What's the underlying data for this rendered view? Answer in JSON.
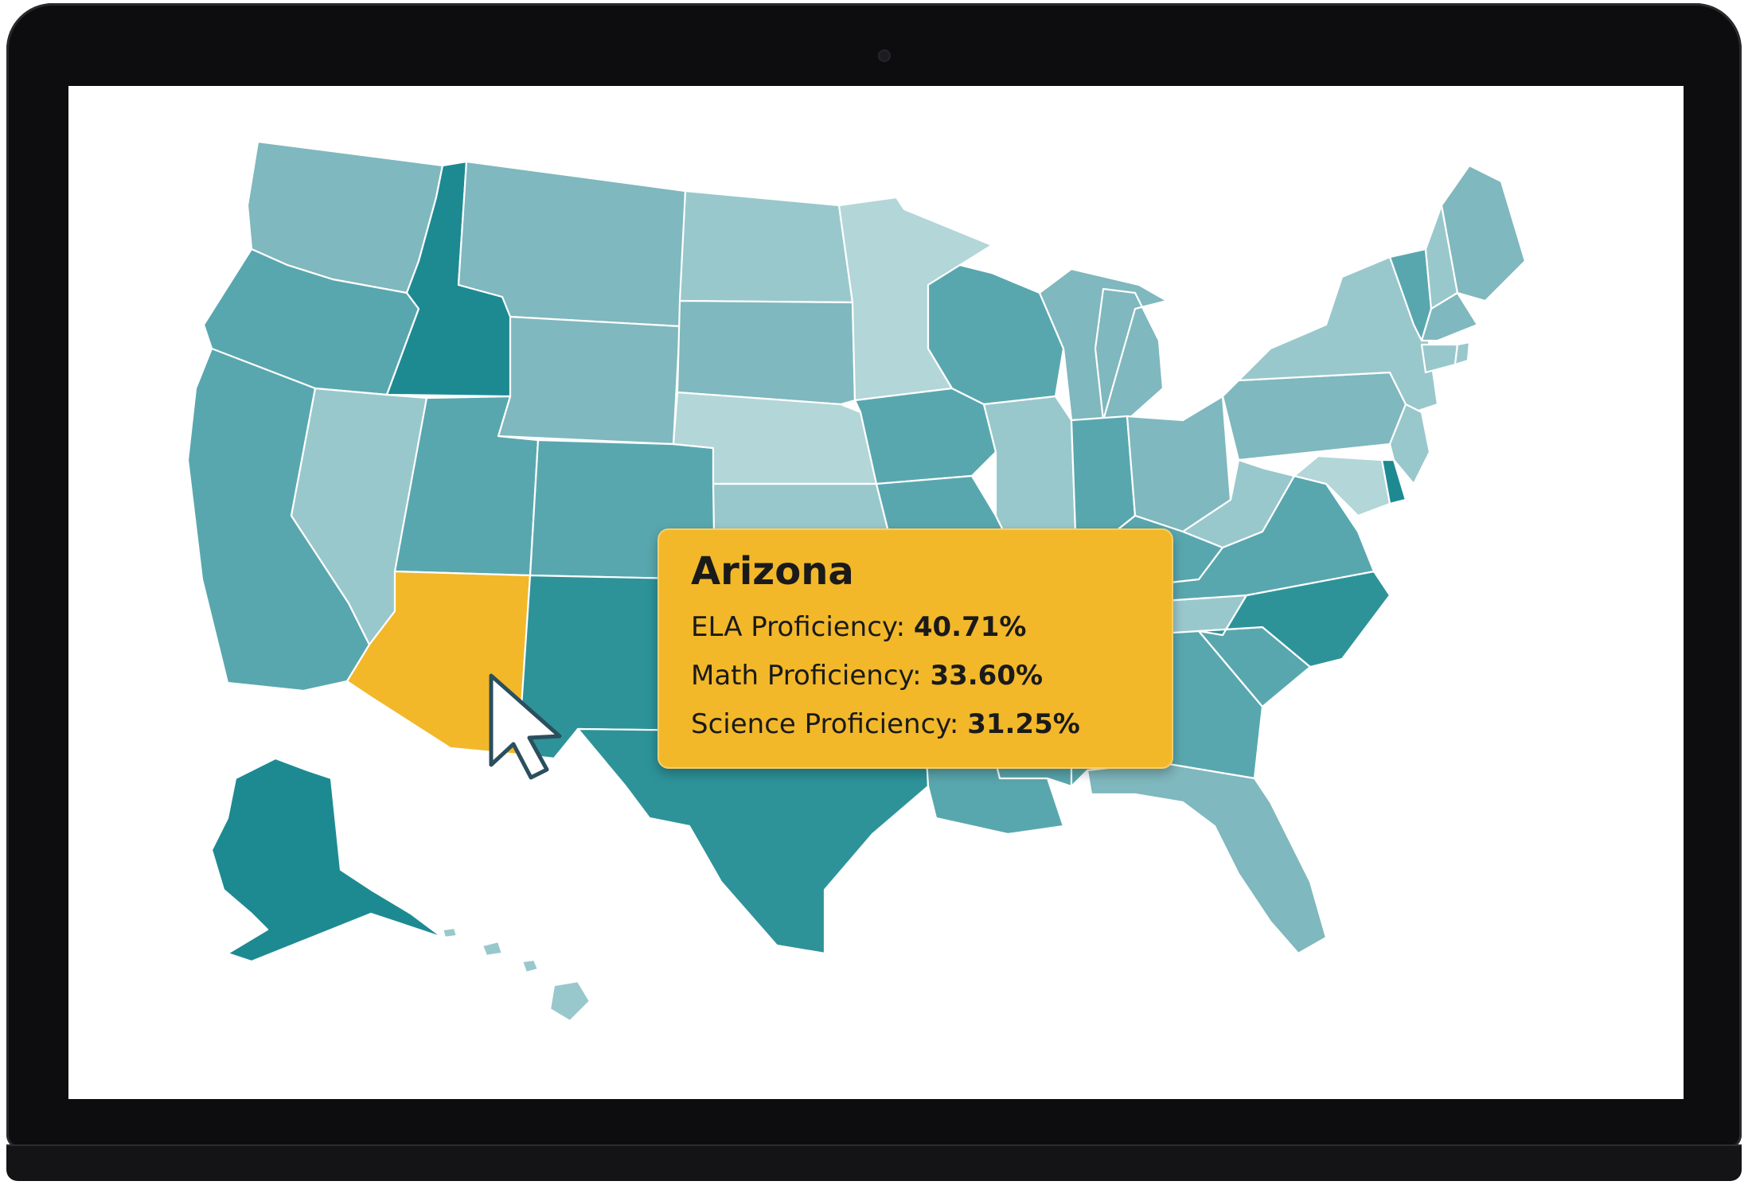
{
  "map": {
    "region": "United States",
    "highlighted_state": "Arizona",
    "colors": {
      "highlight": "#f2b82a",
      "tooltip_bg": "#f2b82a",
      "shade_darkest": "#1d8a92",
      "shade_dark": "#2d9399",
      "shade_mid": "#59a7ae",
      "shade_light": "#7fb8be",
      "shade_lighter": "#99c8cc",
      "shade_lightest": "#b3d6d8"
    },
    "states": [
      {
        "name": "Washington",
        "shade": "shade_light"
      },
      {
        "name": "Oregon",
        "shade": "shade_mid"
      },
      {
        "name": "California",
        "shade": "shade_mid"
      },
      {
        "name": "Idaho",
        "shade": "shade_darkest"
      },
      {
        "name": "Nevada",
        "shade": "shade_lighter"
      },
      {
        "name": "Montana",
        "shade": "shade_light"
      },
      {
        "name": "Wyoming",
        "shade": "shade_light"
      },
      {
        "name": "Utah",
        "shade": "shade_mid"
      },
      {
        "name": "Arizona",
        "shade": "highlight"
      },
      {
        "name": "Colorado",
        "shade": "shade_mid"
      },
      {
        "name": "New Mexico",
        "shade": "shade_dark"
      },
      {
        "name": "North Dakota",
        "shade": "shade_lighter"
      },
      {
        "name": "South Dakota",
        "shade": "shade_light"
      },
      {
        "name": "Nebraska",
        "shade": "shade_lightest"
      },
      {
        "name": "Kansas",
        "shade": "shade_lighter"
      },
      {
        "name": "Oklahoma",
        "shade": "shade_dark"
      },
      {
        "name": "Texas",
        "shade": "shade_dark"
      },
      {
        "name": "Minnesota",
        "shade": "shade_lightest"
      },
      {
        "name": "Iowa",
        "shade": "shade_mid"
      },
      {
        "name": "Missouri",
        "shade": "shade_mid"
      },
      {
        "name": "Arkansas",
        "shade": "shade_mid"
      },
      {
        "name": "Louisiana",
        "shade": "shade_mid"
      },
      {
        "name": "Wisconsin",
        "shade": "shade_mid"
      },
      {
        "name": "Illinois",
        "shade": "shade_lighter"
      },
      {
        "name": "Michigan",
        "shade": "shade_light"
      },
      {
        "name": "Indiana",
        "shade": "shade_mid"
      },
      {
        "name": "Ohio",
        "shade": "shade_light"
      },
      {
        "name": "Kentucky",
        "shade": "shade_mid"
      },
      {
        "name": "Tennessee",
        "shade": "shade_lighter"
      },
      {
        "name": "Mississippi",
        "shade": "shade_mid"
      },
      {
        "name": "Alabama",
        "shade": "shade_mid"
      },
      {
        "name": "Georgia",
        "shade": "shade_mid"
      },
      {
        "name": "Florida",
        "shade": "shade_light"
      },
      {
        "name": "South Carolina",
        "shade": "shade_mid"
      },
      {
        "name": "North Carolina",
        "shade": "shade_dark"
      },
      {
        "name": "Virginia",
        "shade": "shade_mid"
      },
      {
        "name": "West Virginia",
        "shade": "shade_lighter"
      },
      {
        "name": "Pennsylvania",
        "shade": "shade_light"
      },
      {
        "name": "New York",
        "shade": "shade_lighter"
      },
      {
        "name": "Vermont",
        "shade": "shade_mid"
      },
      {
        "name": "New Hampshire",
        "shade": "shade_lighter"
      },
      {
        "name": "Maine",
        "shade": "shade_light"
      },
      {
        "name": "Massachusetts",
        "shade": "shade_light"
      },
      {
        "name": "Connecticut",
        "shade": "shade_lighter"
      },
      {
        "name": "Rhode Island",
        "shade": "shade_lighter"
      },
      {
        "name": "New Jersey",
        "shade": "shade_lighter"
      },
      {
        "name": "Delaware",
        "shade": "shade_darkest"
      },
      {
        "name": "Maryland",
        "shade": "shade_lightest"
      },
      {
        "name": "Alaska",
        "shade": "shade_darkest"
      },
      {
        "name": "Hawaii",
        "shade": "shade_lighter"
      }
    ]
  },
  "tooltip": {
    "state": "Arizona",
    "metrics": [
      {
        "label": "ELA Proficiency:",
        "value": "40.71%"
      },
      {
        "label": "Math Proficiency:",
        "value": "33.60%"
      },
      {
        "label": "Science Proficiency:",
        "value": "31.25%"
      }
    ]
  },
  "icons": {
    "cursor": "mouse-pointer-icon",
    "camera": "webcam-icon"
  }
}
